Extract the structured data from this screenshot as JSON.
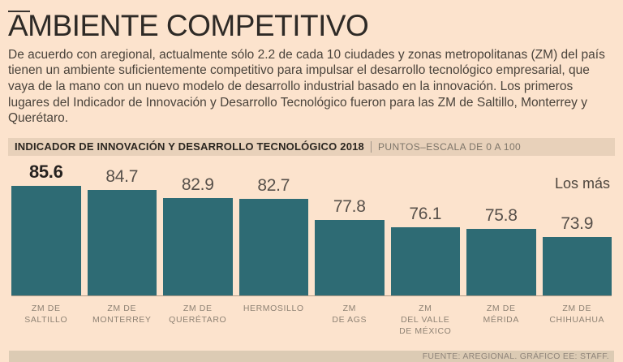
{
  "header": {
    "title": "AMBIENTE COMPETITIVO",
    "paragraph": "De acuerdo con aregional, actualmente sólo 2.2 de cada 10 ciudades y zonas metropolitanas (ZM) del país tienen un ambiente suficientemente competitivo para impulsar el desarrollo tecnológico empresarial, que vaya de la mano con un nuevo modelo de desarrollo industrial basado en la innovación. Los primeros lugares del Indicador de Innovación y Desarrollo Tecnológico fueron para las ZM de Saltillo, Monterrey y Querétaro."
  },
  "chart_data": {
    "type": "bar",
    "title": "INDICADOR DE INNOVACIÓN Y DESARROLLO TECNOLÓGICO 2018",
    "units_label": "PUNTOS–ESCALA DE 0 A 100",
    "annotation": "Los más",
    "categories": [
      "ZM DE SALTILLO",
      "ZM DE MONTERREY",
      "ZM DE QUERÉTARO",
      "HERMOSILLO",
      "ZM DE AGS",
      "ZM DEL VALLE DE MÉXICO",
      "ZM DE MÉRIDA",
      "ZM DE CHIHUAHUA"
    ],
    "category_lines": [
      [
        "ZM DE",
        "SALTILLO"
      ],
      [
        "ZM DE",
        "MONTERREY"
      ],
      [
        "ZM DE",
        "QUERÉTARO"
      ],
      [
        "HERMOSILLO"
      ],
      [
        "ZM",
        "DE AGS"
      ],
      [
        "ZM",
        "DEL VALLE",
        "DE MÉXICO"
      ],
      [
        "ZM DE",
        "MÉRIDA"
      ],
      [
        "ZM DE",
        "CHIHUAHUA"
      ]
    ],
    "values": [
      85.6,
      84.7,
      82.9,
      82.7,
      77.8,
      76.1,
      75.8,
      73.9
    ],
    "value_labels": [
      "85.6",
      "84.7",
      "82.9",
      "82.7",
      "77.8",
      "76.1",
      "75.8",
      "73.9"
    ],
    "highlight_index": 0,
    "bar_color": "#2e6b74",
    "ylabel": "",
    "xlabel": "",
    "grid": false,
    "legend": "none",
    "scale_range": [
      0,
      100
    ]
  },
  "footer": {
    "source": "FUENTE: AREGIONAL. GRÁFICO EE: STAFF."
  },
  "colors": {
    "background": "#fce3cd",
    "band_background": "#e8d1ba",
    "footer_band_background": "#dccbb4",
    "bar": "#2e6b74",
    "title_text": "#2e2a26",
    "body_text": "#4a433b",
    "muted_text": "#8e8274"
  }
}
